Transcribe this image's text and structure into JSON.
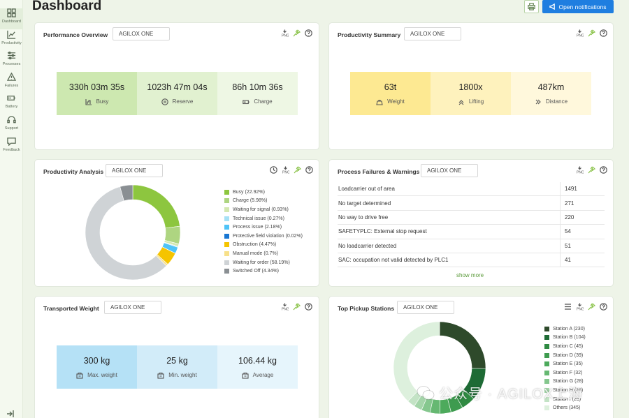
{
  "sidebar": {
    "items": [
      {
        "label": "Dashboard",
        "icon": "dashboard-icon"
      },
      {
        "label": "Productivity",
        "icon": "chart-line-icon"
      },
      {
        "label": "Processes",
        "icon": "sliders-icon"
      },
      {
        "label": "Failures",
        "icon": "warning-icon"
      },
      {
        "label": "Battery",
        "icon": "battery-icon"
      },
      {
        "label": "Support",
        "icon": "headset-icon"
      },
      {
        "label": "Feedback",
        "icon": "feedback-icon"
      }
    ]
  },
  "header": {
    "title": "Dashboard",
    "notifications_label": "Open notifications"
  },
  "performance": {
    "title": "Performance Overview",
    "vehicle": "AGILOX ONE",
    "tiles": [
      {
        "value": "330h 03m 35s",
        "label": "Busy",
        "icon": "busy-icon"
      },
      {
        "value": "1023h 47m 04s",
        "label": "Reserve",
        "icon": "pause-icon"
      },
      {
        "value": "86h 10m 36s",
        "label": "Charge",
        "icon": "battery-icon"
      }
    ]
  },
  "productivity_summary": {
    "title": "Productivity Summary",
    "vehicle": "AGILOX ONE",
    "tiles": [
      {
        "value": "63t",
        "label": "Weight",
        "icon": "weight-icon"
      },
      {
        "value": "1800x",
        "label": "Lifting",
        "icon": "lift-icon"
      },
      {
        "value": "487km",
        "label": "Distance",
        "icon": "distance-icon"
      }
    ]
  },
  "productivity_analysis": {
    "title": "Productivity Analysis",
    "vehicle": "AGILOX ONE",
    "legend": [
      {
        "label": "Busy (22.92%)",
        "color": "#8dc63f"
      },
      {
        "label": "Charge (5.98%)",
        "color": "#aed581"
      },
      {
        "label": "Waiting for signal (0.93%)",
        "color": "#d4e8b0"
      },
      {
        "label": "Technical issue (0.27%)",
        "color": "#a6e1f5"
      },
      {
        "label": "Process issue (2.18%)",
        "color": "#4fc3f7"
      },
      {
        "label": "Protective field violation (0.02%)",
        "color": "#1976d2"
      },
      {
        "label": "Obstruction (4.47%)",
        "color": "#f5c400"
      },
      {
        "label": "Manual mode (0.7%)",
        "color": "#f7e08a"
      },
      {
        "label": "Waiting for order (58.19%)",
        "color": "#cfd3d6"
      },
      {
        "label": "Switched Off (4.34%)",
        "color": "#8a8f93"
      }
    ]
  },
  "failures": {
    "title": "Process Failures & Warnings",
    "vehicle": "AGILOX ONE",
    "rows": [
      {
        "label": "Loadcarrier out of area",
        "count": "1491"
      },
      {
        "label": "No target determined",
        "count": "271"
      },
      {
        "label": "No way to drive free",
        "count": "220"
      },
      {
        "label": "SAFETYPLC: External stop request",
        "count": "54"
      },
      {
        "label": "No loadcarrier detected",
        "count": "51"
      },
      {
        "label": "SAC: occupation not valid detected by PLC1",
        "count": "41"
      }
    ],
    "show_more": "show more"
  },
  "transported_weight": {
    "title": "Transported Weight",
    "vehicle": "AGILOX ONE",
    "tiles": [
      {
        "value": "300 kg",
        "label": "Max. weight",
        "icon": "scale-icon"
      },
      {
        "value": "25 kg",
        "label": "Min. weight",
        "icon": "scale-icon"
      },
      {
        "value": "106.44 kg",
        "label": "Average",
        "icon": "scale-icon"
      }
    ]
  },
  "pickup": {
    "title": "Top Pickup Stations",
    "vehicle": "AGILOX ONE",
    "legend": [
      {
        "label": "Station A (230)",
        "color": "#2e4a2b"
      },
      {
        "label": "Station B (104)",
        "color": "#1e6b35"
      },
      {
        "label": "Station C (45)",
        "color": "#2f8a42"
      },
      {
        "label": "Station D (39)",
        "color": "#3e9b4f"
      },
      {
        "label": "Station E (35)",
        "color": "#4daa5c"
      },
      {
        "label": "Station F (32)",
        "color": "#66b872"
      },
      {
        "label": "Station G (28)",
        "color": "#85c78e"
      },
      {
        "label": "Station H (26)",
        "color": "#a4d5a9"
      },
      {
        "label": "Station I (25)",
        "color": "#c3e3c5"
      },
      {
        "label": "Others (345)",
        "color": "#ddf0dd"
      }
    ]
  },
  "chart_data": [
    {
      "type": "pie",
      "title": "Productivity Analysis",
      "categories": [
        "Busy",
        "Charge",
        "Waiting for signal",
        "Technical issue",
        "Process issue",
        "Protective field violation",
        "Obstruction",
        "Manual mode",
        "Waiting for order",
        "Switched Off"
      ],
      "values": [
        22.92,
        5.98,
        0.93,
        0.27,
        2.18,
        0.02,
        4.47,
        0.7,
        58.19,
        4.34
      ],
      "colors": [
        "#8dc63f",
        "#aed581",
        "#d4e8b0",
        "#a6e1f5",
        "#4fc3f7",
        "#1976d2",
        "#f5c400",
        "#f7e08a",
        "#cfd3d6",
        "#8a8f93"
      ]
    },
    {
      "type": "pie",
      "title": "Top Pickup Stations",
      "categories": [
        "Station A",
        "Station B",
        "Station C",
        "Station D",
        "Station E",
        "Station F",
        "Station G",
        "Station H",
        "Station I",
        "Others"
      ],
      "values": [
        230,
        104,
        45,
        39,
        35,
        32,
        28,
        26,
        25,
        345
      ],
      "colors": [
        "#2e4a2b",
        "#1e6b35",
        "#2f8a42",
        "#3e9b4f",
        "#4daa5c",
        "#66b872",
        "#85c78e",
        "#a4d5a9",
        "#c3e3c5",
        "#ddf0dd"
      ]
    }
  ],
  "watermark": "公众号 · AGILOX上海"
}
